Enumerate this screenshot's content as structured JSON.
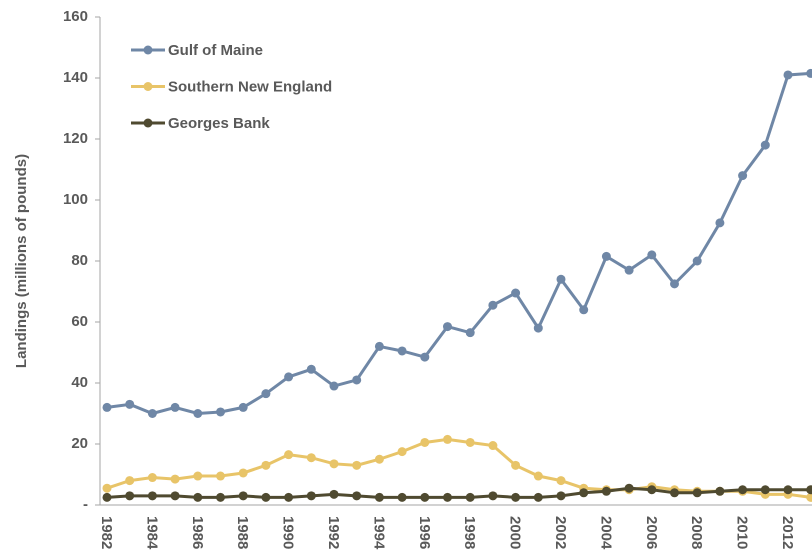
{
  "chart_data": {
    "type": "line",
    "y_label": "Landings (millions of pounds)",
    "categories": [
      "1982",
      null,
      "1984",
      null,
      "1986",
      null,
      "1988",
      null,
      "1990",
      null,
      "1992",
      null,
      "1994",
      null,
      "1996",
      null,
      "1998",
      null,
      "2000",
      null,
      "2002",
      null,
      "2004",
      null,
      "2006",
      null,
      "2008",
      null,
      "2010",
      null,
      "2012",
      null
    ],
    "series": [
      {
        "name": "Gulf of Maine",
        "color": "#6f87a6",
        "values": [
          32,
          33,
          30,
          32,
          30,
          30.5,
          32,
          36.5,
          42,
          44.5,
          39,
          41,
          52,
          50.5,
          48.5,
          58.5,
          56.5,
          65.5,
          69.5,
          58,
          74,
          64,
          81.5,
          77,
          82,
          72.5,
          80,
          92.5,
          108,
          118,
          141,
          141.5
        ]
      },
      {
        "name": "Southern New England",
        "color": "#e8c468",
        "values": [
          5.5,
          8,
          9,
          8.5,
          9.5,
          9.5,
          10.5,
          13,
          16.5,
          15.5,
          13.5,
          13,
          15,
          17.5,
          20.5,
          21.5,
          20.5,
          19.5,
          13,
          9.5,
          8,
          5.5,
          5,
          5,
          6,
          5,
          4.5,
          4.5,
          4.5,
          3.5,
          3.5,
          2.5
        ]
      },
      {
        "name": "Georges Bank",
        "color": "#4f4a30",
        "values": [
          2.5,
          3,
          3,
          3,
          2.5,
          2.5,
          3,
          2.5,
          2.5,
          3,
          3.5,
          3,
          2.5,
          2.5,
          2.5,
          2.5,
          2.5,
          3,
          2.5,
          2.5,
          3,
          4,
          4.5,
          5.5,
          5,
          4,
          4,
          4.5,
          5,
          5,
          5,
          5
        ]
      }
    ],
    "ylim": [
      0,
      160
    ],
    "yticks": [
      {
        "value": 0,
        "label": "-"
      },
      20,
      40,
      60,
      80,
      100,
      120,
      140,
      160
    ],
    "legend": "upper left"
  }
}
